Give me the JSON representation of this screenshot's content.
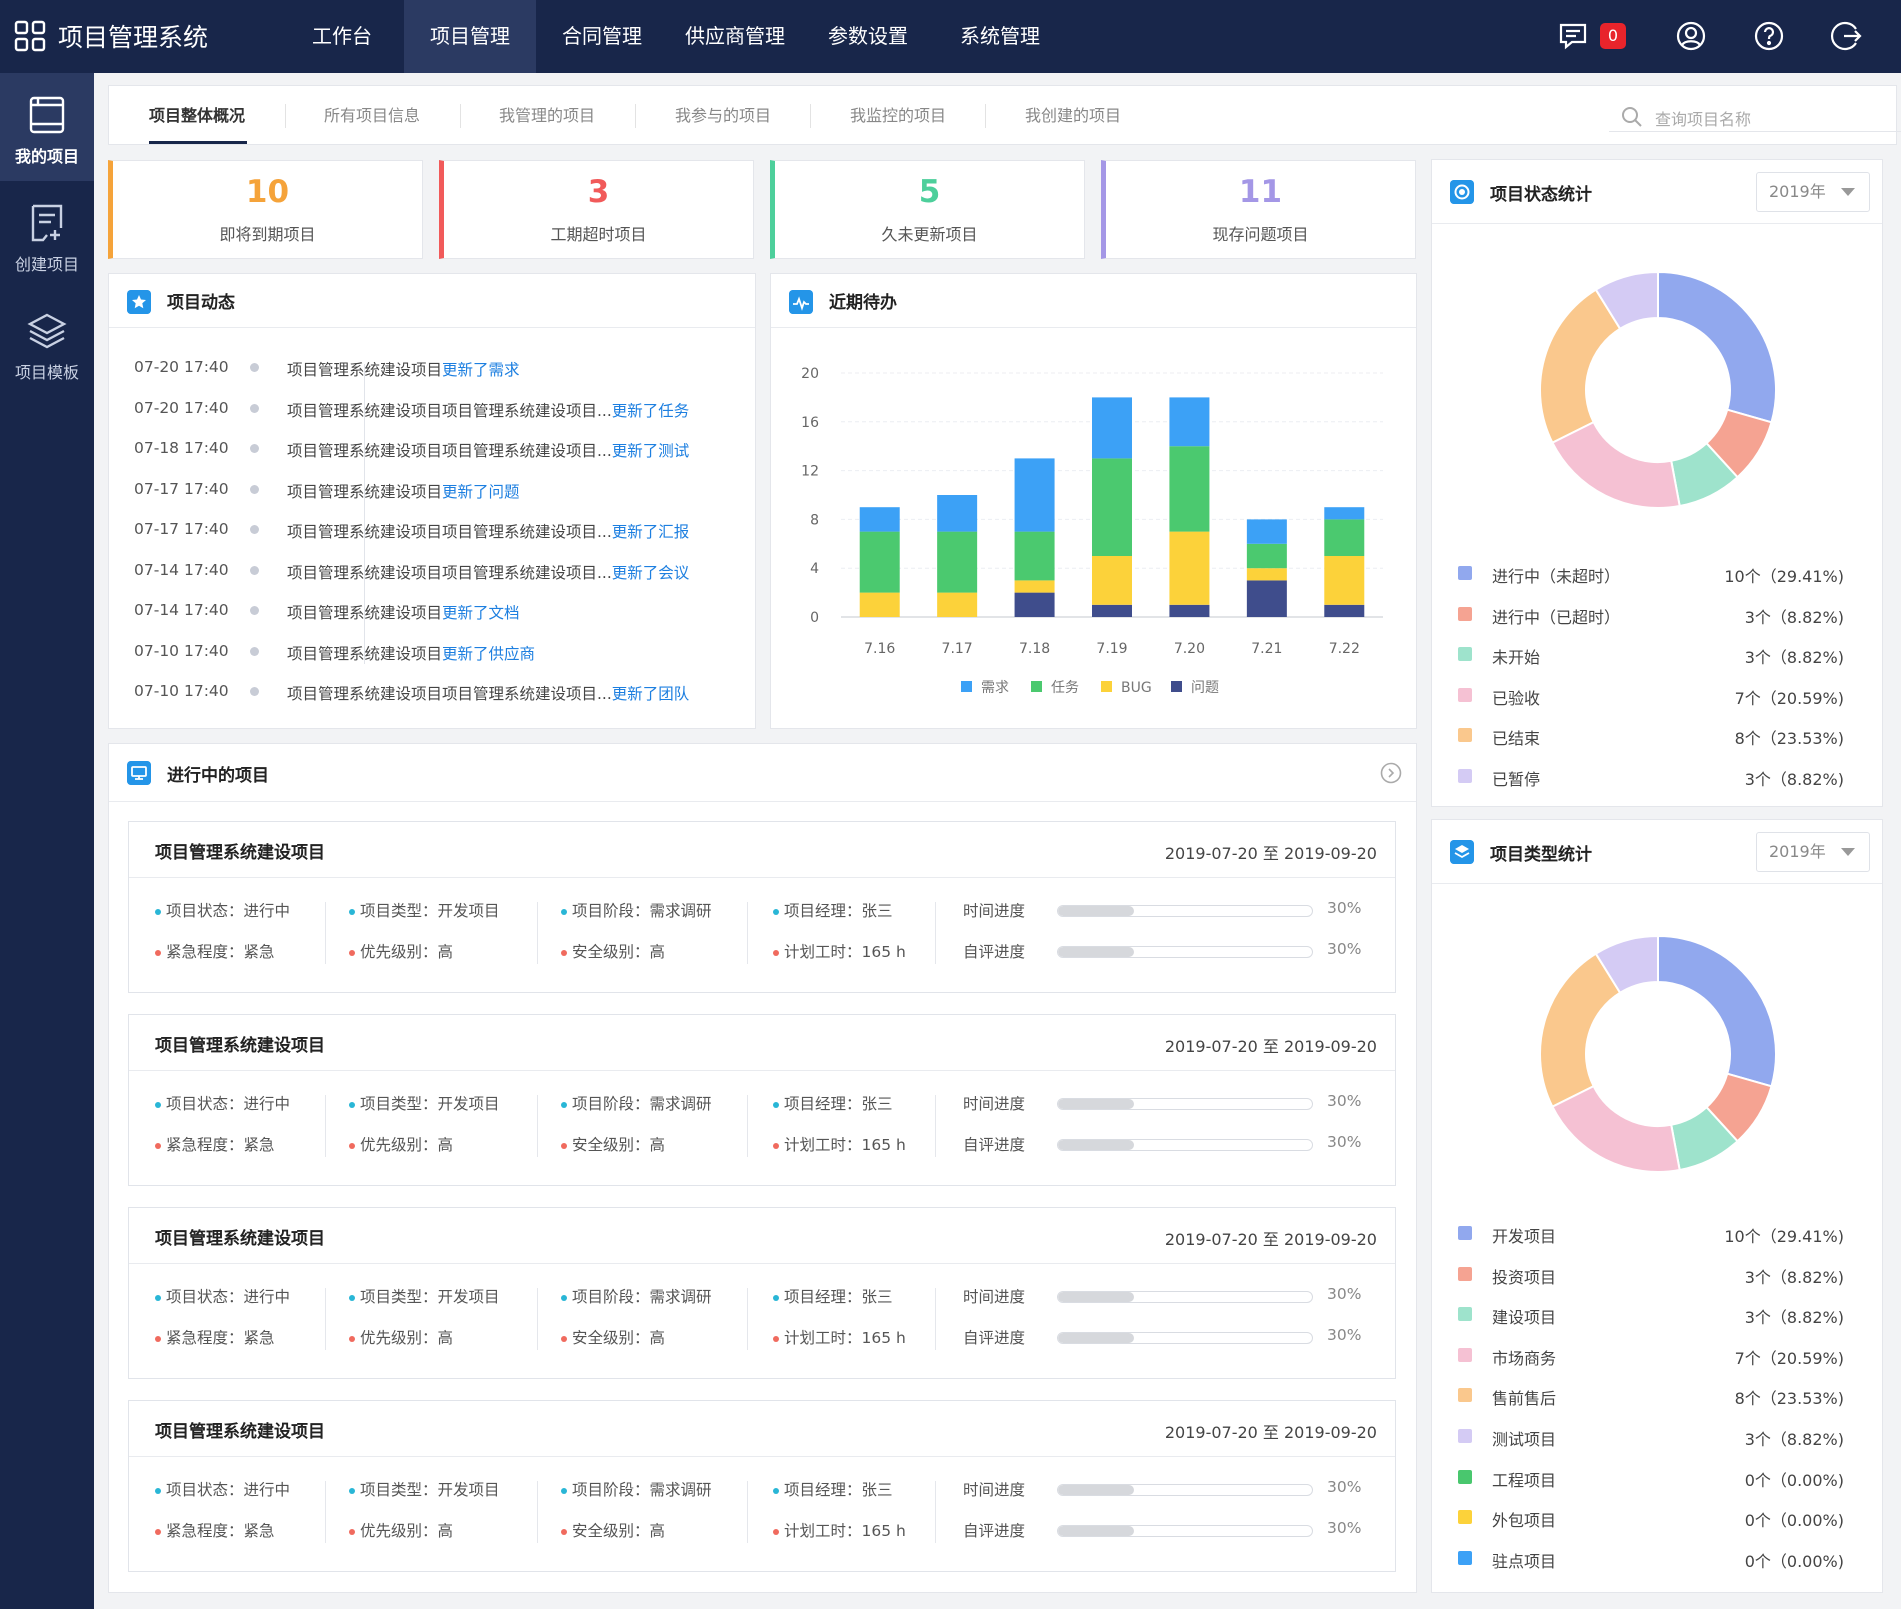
{
  "app": {
    "title": "项目管理系统"
  },
  "nav": {
    "items": [
      "工作台",
      "项目管理",
      "合同管理",
      "供应商管理",
      "参数设置",
      "系统管理"
    ],
    "active": 1
  },
  "topbar": {
    "message_count": "0"
  },
  "sidebar": {
    "items": [
      {
        "label": "我的项目",
        "icon": "book-icon",
        "active": true
      },
      {
        "label": "创建项目",
        "icon": "edit-doc-icon",
        "active": false
      },
      {
        "label": "项目模板",
        "icon": "layers-icon",
        "active": false
      }
    ]
  },
  "tabs": {
    "items": [
      "项目整体概况",
      "所有项目信息",
      "我管理的项目",
      "我参与的项目",
      "我监控的项目",
      "我创建的项目"
    ],
    "active": 0
  },
  "search": {
    "placeholder": "查询项目名称"
  },
  "stats": [
    {
      "value": "10",
      "label": "即将到期项目",
      "color": "#f5a33a"
    },
    {
      "value": "3",
      "label": "工期超时项目",
      "color": "#f15a5a"
    },
    {
      "value": "5",
      "label": "久未更新项目",
      "color": "#4dcf9b"
    },
    {
      "value": "11",
      "label": "现存问题项目",
      "color": "#a497e6"
    }
  ],
  "activity": {
    "title": "项目动态",
    "items": [
      {
        "time": "07-20 17:40",
        "text": "项目管理系统建设项目",
        "action": "更新了需求"
      },
      {
        "time": "07-20 17:40",
        "text": "项目管理系统建设项目项目管理系统建设项目...",
        "action": "更新了任务"
      },
      {
        "time": "07-18 17:40",
        "text": "项目管理系统建设项目项目管理系统建设项目...",
        "action": "更新了测试"
      },
      {
        "time": "07-17 17:40",
        "text": "项目管理系统建设项目",
        "action": "更新了问题"
      },
      {
        "time": "07-17 17:40",
        "text": "项目管理系统建设项目项目管理系统建设项目...",
        "action": "更新了汇报"
      },
      {
        "time": "07-14 17:40",
        "text": "项目管理系统建设项目项目管理系统建设项目...",
        "action": "更新了会议"
      },
      {
        "time": "07-14 17:40",
        "text": "项目管理系统建设项目",
        "action": "更新了文档"
      },
      {
        "time": "07-10 17:40",
        "text": "项目管理系统建设项目",
        "action": "更新了供应商"
      },
      {
        "time": "07-10 17:40",
        "text": "项目管理系统建设项目项目管理系统建设项目...",
        "action": "更新了团队"
      }
    ]
  },
  "todo": {
    "title": "近期待办"
  },
  "chart_data": {
    "type": "bar",
    "stacked": true,
    "categories": [
      "7.16",
      "7.17",
      "7.18",
      "7.19",
      "7.20",
      "7.21",
      "7.22"
    ],
    "ylim": [
      0,
      20
    ],
    "yticks": [
      0,
      4,
      8,
      12,
      16,
      20
    ],
    "grid": true,
    "legend": "bottom",
    "series": [
      {
        "name": "问题",
        "color": "#3f4d8c",
        "values": [
          0,
          0,
          2,
          1,
          1,
          3,
          1
        ]
      },
      {
        "name": "BUG",
        "color": "#fcd23a",
        "values": [
          2,
          2,
          1,
          4,
          6,
          1,
          4
        ]
      },
      {
        "name": "任务",
        "color": "#4bc96f",
        "values": [
          5,
          5,
          4,
          8,
          7,
          2,
          3
        ]
      },
      {
        "name": "需求",
        "color": "#3ca1f6",
        "values": [
          2,
          3,
          6,
          5,
          4,
          2,
          1
        ]
      }
    ],
    "legend_order": [
      "需求",
      "任务",
      "BUG",
      "问题"
    ]
  },
  "status_stats": {
    "title": "项目状态统计",
    "year": "2019年",
    "items": [
      {
        "name": "进行中（未超时）",
        "count": 10,
        "value": "10个（29.41%)",
        "color": "#91a8ee"
      },
      {
        "name": "进行中（已超时）",
        "count": 3,
        "value": "3个（8.82%)",
        "color": "#f5a392"
      },
      {
        "name": "未开始",
        "count": 3,
        "value": "3个（8.82%)",
        "color": "#9ee3cc"
      },
      {
        "name": "已验收",
        "count": 7,
        "value": "7个（20.59%)",
        "color": "#f5c1d3"
      },
      {
        "name": "已结束",
        "count": 8,
        "value": "8个（23.53%)",
        "color": "#fac88d"
      },
      {
        "name": "已暂停",
        "count": 3,
        "value": "3个（8.82%)",
        "color": "#d4cbf4"
      }
    ]
  },
  "type_stats": {
    "title": "项目类型统计",
    "year": "2019年",
    "items": [
      {
        "name": "开发项目",
        "count": 10,
        "value": "10个（29.41%)",
        "color": "#91a8ee"
      },
      {
        "name": "投资项目",
        "count": 3,
        "value": "3个（8.82%)",
        "color": "#f5a392"
      },
      {
        "name": "建设项目",
        "count": 3,
        "value": "3个（8.82%)",
        "color": "#9ee3cc"
      },
      {
        "name": "市场商务",
        "count": 7,
        "value": "7个（20.59%)",
        "color": "#f5c1d3"
      },
      {
        "name": "售前售后",
        "count": 8,
        "value": "8个（23.53%)",
        "color": "#fac88d"
      },
      {
        "name": "测试项目",
        "count": 3,
        "value": "3个（8.82%)",
        "color": "#d4cbf4"
      },
      {
        "name": "工程项目",
        "count": 0,
        "value": "0个（0.00%)",
        "color": "#49c76e"
      },
      {
        "name": "外包项目",
        "count": 0,
        "value": "0个（0.00%)",
        "color": "#fcd23a"
      },
      {
        "name": "驻点项目",
        "count": 0,
        "value": "0个（0.00%)",
        "color": "#3ca1f6"
      }
    ]
  },
  "ongoing": {
    "title": "进行中的项目",
    "projects": [
      {
        "name": "项目管理系统建设项目",
        "dates": "2019-07-20 至 2019-09-20",
        "status": "项目状态：进行中",
        "urgency": "紧急程度：紧急",
        "type": "项目类型：开发项目",
        "priority": "优先级别：高",
        "stage": "项目阶段：需求调研",
        "security": "安全级别：高",
        "manager": "项目经理：张三",
        "hours": "计划工时：165 h",
        "time_label": "时间进度",
        "time_progress": 0.3,
        "time_pct": "30%",
        "eval_label": "自评进度",
        "eval_progress": 0.3,
        "eval_pct": "30%"
      },
      {
        "name": "项目管理系统建设项目",
        "dates": "2019-07-20 至 2019-09-20",
        "status": "项目状态：进行中",
        "urgency": "紧急程度：紧急",
        "type": "项目类型：开发项目",
        "priority": "优先级别：高",
        "stage": "项目阶段：需求调研",
        "security": "安全级别：高",
        "manager": "项目经理：张三",
        "hours": "计划工时：165 h",
        "time_label": "时间进度",
        "time_progress": 0.3,
        "time_pct": "30%",
        "eval_label": "自评进度",
        "eval_progress": 0.3,
        "eval_pct": "30%"
      },
      {
        "name": "项目管理系统建设项目",
        "dates": "2019-07-20 至 2019-09-20",
        "status": "项目状态：进行中",
        "urgency": "紧急程度：紧急",
        "type": "项目类型：开发项目",
        "priority": "优先级别：高",
        "stage": "项目阶段：需求调研",
        "security": "安全级别：高",
        "manager": "项目经理：张三",
        "hours": "计划工时：165 h",
        "time_label": "时间进度",
        "time_progress": 0.3,
        "time_pct": "30%",
        "eval_label": "自评进度",
        "eval_progress": 0.3,
        "eval_pct": "30%"
      },
      {
        "name": "项目管理系统建设项目",
        "dates": "2019-07-20 至 2019-09-20",
        "status": "项目状态：进行中",
        "urgency": "紧急程度：紧急",
        "type": "项目类型：开发项目",
        "priority": "优先级别：高",
        "stage": "项目阶段：需求调研",
        "security": "安全级别：高",
        "manager": "项目经理：张三",
        "hours": "计划工时：165 h",
        "time_label": "时间进度",
        "time_progress": 0.3,
        "time_pct": "30%",
        "eval_label": "自评进度",
        "eval_progress": 0.3,
        "eval_pct": "30%"
      }
    ]
  },
  "colors": {
    "navy": "#18264a",
    "accent_blue": "#2495e8",
    "link_blue": "#1d7fe0",
    "dot_cyan": "#29b6d6",
    "dot_red": "#f06a5e"
  }
}
